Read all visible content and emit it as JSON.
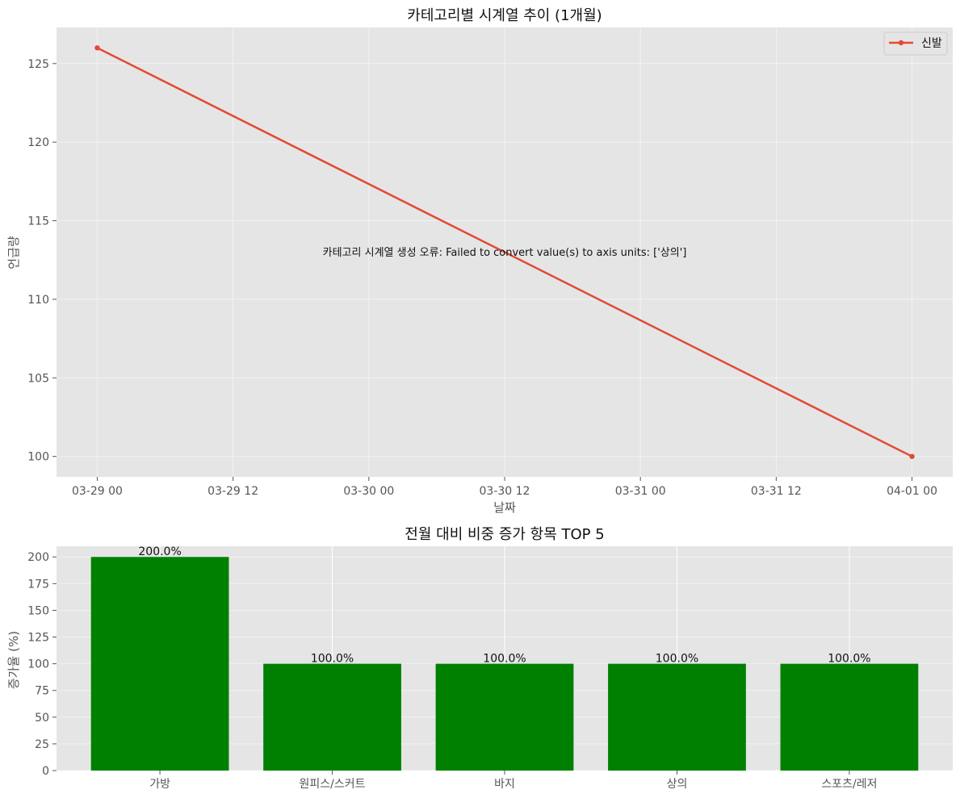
{
  "chart_data": [
    {
      "type": "line",
      "title": "카테고리별 시계열 추이 (1개월)",
      "xlabel": "날짜",
      "ylabel": "언급량",
      "x_ticks": [
        "03-29 00",
        "03-29 12",
        "03-30 00",
        "03-30 12",
        "03-31 00",
        "03-31 12",
        "04-01 00"
      ],
      "x_tick_hours": [
        0,
        12,
        24,
        36,
        48,
        60,
        72
      ],
      "xlim_hours": [
        -3.6,
        75.6
      ],
      "y_ticks": [
        100,
        105,
        110,
        115,
        120,
        125
      ],
      "ylim": [
        98.7,
        127.3
      ],
      "series": [
        {
          "name": "신발",
          "color": "#E24A33",
          "points": [
            {
              "x": "03-29 00",
              "y": 126
            },
            {
              "x": "04-01 00",
              "y": 100
            }
          ],
          "x_hours": [
            0,
            72
          ]
        }
      ],
      "legend": "top-right",
      "grid": true,
      "annotation": "카테고리 시계열 생성 오류: Failed to convert value(s) to axis units: ['상의']"
    },
    {
      "type": "bar",
      "title": "전월 대비 비중 증가 항목 TOP 5",
      "xlabel": "",
      "ylabel": "증가율 (%)",
      "categories": [
        "가방",
        "원피스/스커트",
        "바지",
        "상의",
        "스포츠/레저"
      ],
      "values": [
        200.0,
        100.0,
        100.0,
        100.0,
        100.0
      ],
      "value_labels": [
        "200.0%",
        "100.0%",
        "100.0%",
        "100.0%",
        "100.0%"
      ],
      "y_ticks": [
        0,
        25,
        50,
        75,
        100,
        125,
        150,
        175,
        200
      ],
      "ylim": [
        0,
        210
      ],
      "color": "#008000",
      "grid": true
    }
  ]
}
